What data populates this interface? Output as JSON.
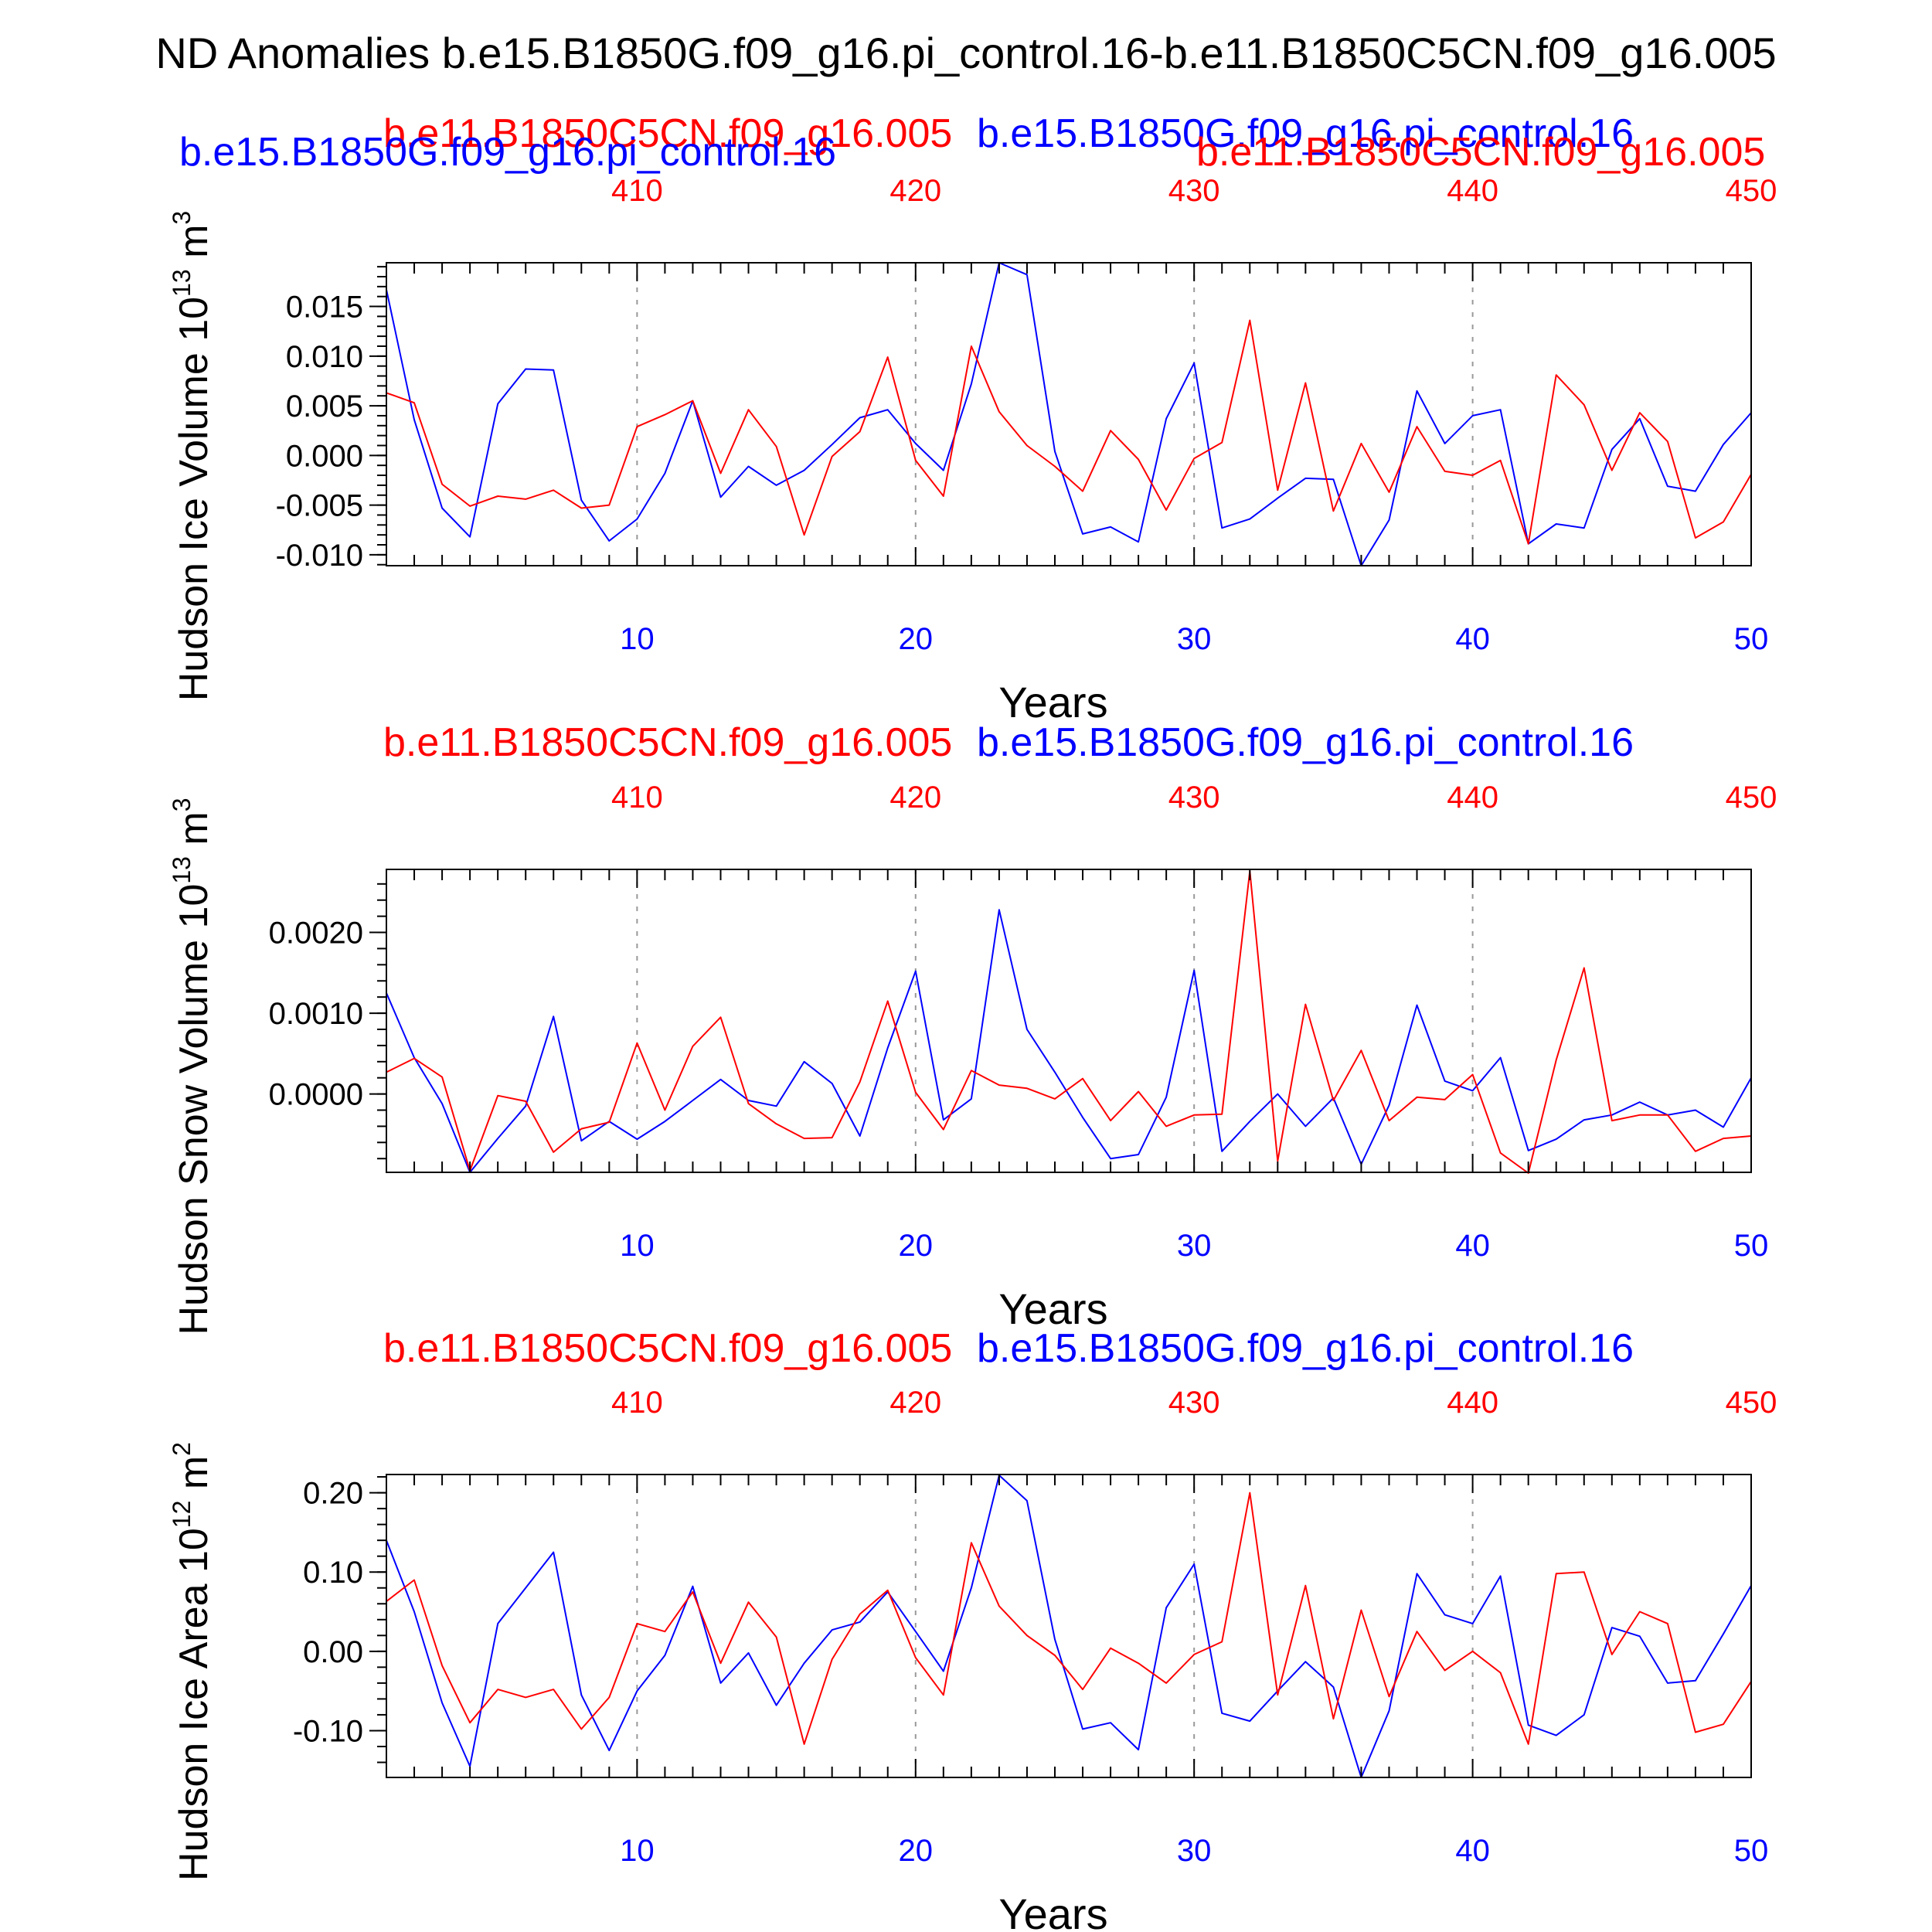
{
  "title": "ND Anomalies b.e15.B1850G.f09_g16.pi_control.16-b.e11.B1850C5CN.f09_g16.005",
  "colors": {
    "series_a": "#0000ff",
    "series_b": "#ff0000",
    "axis": "#000000",
    "grid": "#999999"
  },
  "legend": {
    "series_a_name": "b.e15.B1850G.f09_g16.pi_control.16",
    "series_b_name": "b.e11.B1850C5CN.f09_g16.005"
  },
  "chart_data": [
    {
      "type": "line",
      "ylabel": "Hudson Ice Volume 10",
      "ylabel_exp": "13",
      "ylabel_unit": " m",
      "ylabel_unit_exp": "3",
      "xlabel": "Years",
      "xlim": [
        1,
        50
      ],
      "ylim": [
        -0.0111,
        0.0194
      ],
      "yticks": [
        -0.01,
        -0.005,
        0.0,
        0.005,
        0.01,
        0.015
      ],
      "ytick_labels": [
        "-0.010",
        "-0.005",
        "0.000",
        "0.005",
        "0.010",
        "0.015"
      ],
      "bottom_ticks": [
        10,
        20,
        30,
        40,
        50
      ],
      "bottom_tick_labels": [
        "10",
        "20",
        "30",
        "40",
        "50"
      ],
      "top_ticks": [
        410,
        420,
        430,
        440,
        450
      ],
      "top_tick_labels": [
        "410",
        "420",
        "430",
        "440",
        "450"
      ],
      "top_offset": 400,
      "series": [
        {
          "name": "b.e15.B1850G.f09_g16.pi_control.16",
          "axis": "bottom",
          "x": [
            1,
            2,
            3,
            4,
            5,
            6,
            7,
            8,
            9,
            10,
            11,
            12,
            13,
            14,
            15,
            16,
            17,
            18,
            19,
            20,
            21,
            22,
            23,
            24,
            25,
            26,
            27,
            28,
            29,
            30,
            31,
            32,
            33,
            34,
            35,
            36,
            37,
            38,
            39,
            40,
            41,
            42,
            43,
            44,
            45,
            46,
            47,
            48,
            49,
            50
          ],
          "values": [
            0.0167,
            0.0036,
            -0.0053,
            -0.0082,
            0.0052,
            0.0087,
            0.0086,
            -0.0045,
            -0.0086,
            -0.0064,
            -0.0018,
            0.0055,
            -0.0042,
            -0.0011,
            -0.003,
            -0.0015,
            0.0011,
            0.0038,
            0.0046,
            0.0012,
            -0.0015,
            0.0072,
            0.0194,
            0.0182,
            0.0004,
            -0.0079,
            -0.0072,
            -0.0087,
            0.0037,
            0.0093,
            -0.0073,
            -0.0064,
            -0.0043,
            -0.0023,
            -0.0024,
            -0.0111,
            -0.0065,
            0.0065,
            0.0012,
            0.004,
            0.0046,
            -0.0089,
            -0.0069,
            -0.0073,
            0.0006,
            0.0037,
            -0.0031,
            -0.0036,
            0.0011,
            0.0043
          ]
        },
        {
          "name": "b.e11.B1850C5CN.f09_g16.005",
          "axis": "top",
          "x": [
            401,
            402,
            403,
            404,
            405,
            406,
            407,
            408,
            409,
            410,
            411,
            412,
            413,
            414,
            415,
            416,
            417,
            418,
            419,
            420,
            421,
            422,
            423,
            424,
            425,
            426,
            427,
            428,
            429,
            430,
            431,
            432,
            433,
            434,
            435,
            436,
            437,
            438,
            439,
            440,
            441,
            442,
            443,
            444,
            445,
            446,
            447,
            448,
            449,
            450
          ],
          "values": [
            0.0063,
            0.0053,
            -0.0029,
            -0.0051,
            -0.0041,
            -0.0044,
            -0.0035,
            -0.0053,
            -0.005,
            0.0029,
            0.0041,
            0.0055,
            -0.0018,
            0.0046,
            0.0009,
            -0.008,
            -0.0001,
            0.0024,
            0.0099,
            -0.0005,
            -0.0041,
            0.011,
            0.0044,
            0.001,
            -0.0011,
            -0.0036,
            0.0025,
            -0.0004,
            -0.0055,
            -0.0003,
            0.0013,
            0.0136,
            -0.0035,
            0.0073,
            -0.0056,
            0.0012,
            -0.0037,
            0.0029,
            -0.0016,
            -0.002,
            -0.0005,
            -0.0089,
            0.0081,
            0.0051,
            -0.0015,
            0.0043,
            0.0014,
            -0.0083,
            -0.0067,
            -0.0019
          ]
        }
      ]
    },
    {
      "type": "line",
      "ylabel": "Hudson Snow Volume 10",
      "ylabel_exp": "13",
      "ylabel_unit": " m",
      "ylabel_unit_exp": "3",
      "xlabel": "Years",
      "xlim": [
        1,
        50
      ],
      "ylim": [
        -0.00097,
        0.00278
      ],
      "yticks": [
        0.0,
        0.001,
        0.002
      ],
      "ytick_labels": [
        "0.0000",
        "0.0010",
        "0.0020"
      ],
      "bottom_ticks": [
        10,
        20,
        30,
        40,
        50
      ],
      "bottom_tick_labels": [
        "10",
        "20",
        "30",
        "40",
        "50"
      ],
      "top_ticks": [
        410,
        420,
        430,
        440,
        450
      ],
      "top_tick_labels": [
        "410",
        "420",
        "430",
        "440",
        "450"
      ],
      "top_offset": 400,
      "series": [
        {
          "name": "b.e15.B1850G.f09_g16.pi_control.16",
          "axis": "bottom",
          "x": [
            1,
            2,
            3,
            4,
            5,
            6,
            7,
            8,
            9,
            10,
            11,
            12,
            13,
            14,
            15,
            16,
            17,
            18,
            19,
            20,
            21,
            22,
            23,
            24,
            25,
            26,
            27,
            28,
            29,
            30,
            31,
            32,
            33,
            34,
            35,
            36,
            37,
            38,
            39,
            40,
            41,
            42,
            43,
            44,
            45,
            46,
            47,
            48,
            49,
            50
          ],
          "values": [
            0.00125,
            0.00045,
            -0.00012,
            -0.00097,
            -0.00055,
            -0.00015,
            0.00096,
            -0.00058,
            -0.00034,
            -0.00056,
            -0.00034,
            -8e-05,
            0.00018,
            -8e-05,
            -0.00015,
            0.0004,
            0.00013,
            -0.00052,
            0.00057,
            0.00152,
            -0.00032,
            -6e-05,
            0.00228,
            0.0008,
            0.00027,
            -0.00029,
            -0.0008,
            -0.00075,
            -4e-05,
            0.00153,
            -0.00071,
            -0.00034,
            0.0,
            -0.0004,
            -5e-05,
            -0.00087,
            -0.00014,
            0.0011,
            0.00016,
            4e-05,
            0.00045,
            -0.0007,
            -0.00056,
            -0.00032,
            -0.00026,
            -0.0001,
            -0.00026,
            -0.0002,
            -0.00041,
            0.0002
          ]
        },
        {
          "name": "b.e11.B1850C5CN.f09_g16.005",
          "axis": "top",
          "x": [
            401,
            402,
            403,
            404,
            405,
            406,
            407,
            408,
            409,
            410,
            411,
            412,
            413,
            414,
            415,
            416,
            417,
            418,
            419,
            420,
            421,
            422,
            423,
            424,
            425,
            426,
            427,
            428,
            429,
            430,
            431,
            432,
            433,
            434,
            435,
            436,
            437,
            438,
            439,
            440,
            441,
            442,
            443,
            444,
            445,
            446,
            447,
            448,
            449,
            450
          ],
          "values": [
            0.00027,
            0.00044,
            0.00021,
            -0.00095,
            -2e-05,
            -9e-05,
            -0.00072,
            -0.00043,
            -0.00035,
            0.00063,
            -0.0002,
            0.00059,
            0.00095,
            -0.00012,
            -0.00037,
            -0.00055,
            -0.00054,
            0.00015,
            0.00115,
            2e-05,
            -0.00044,
            0.00029,
            0.00011,
            7e-05,
            -6e-05,
            0.00019,
            -0.00033,
            3e-05,
            -0.0004,
            -0.00026,
            -0.00025,
            0.00276,
            -0.00083,
            0.00111,
            -8e-05,
            0.00054,
            -0.00033,
            -4e-05,
            -7e-05,
            0.00024,
            -0.00073,
            -0.00098,
            0.00042,
            0.00156,
            -0.00033,
            -0.00026,
            -0.00026,
            -0.00071,
            -0.00055,
            -0.00052
          ]
        }
      ]
    },
    {
      "type": "line",
      "ylabel": "Hudson Ice Area 10",
      "ylabel_exp": "12",
      "ylabel_unit": " m",
      "ylabel_unit_exp": "2",
      "xlabel": "Years",
      "xlim": [
        1,
        50
      ],
      "ylim": [
        -0.159,
        0.223
      ],
      "yticks": [
        -0.1,
        0.0,
        0.1,
        0.2
      ],
      "ytick_labels": [
        "-0.10",
        "0.00",
        "0.10",
        "0.20"
      ],
      "bottom_ticks": [
        10,
        20,
        30,
        40,
        50
      ],
      "bottom_tick_labels": [
        "10",
        "20",
        "30",
        "40",
        "50"
      ],
      "top_ticks": [
        410,
        420,
        430,
        440,
        450
      ],
      "top_tick_labels": [
        "410",
        "420",
        "430",
        "440",
        "450"
      ],
      "top_offset": 400,
      "series": [
        {
          "name": "b.e15.B1850G.f09_g16.pi_control.16",
          "axis": "bottom",
          "x": [
            1,
            2,
            3,
            4,
            5,
            6,
            7,
            8,
            9,
            10,
            11,
            12,
            13,
            14,
            15,
            16,
            17,
            18,
            19,
            20,
            21,
            22,
            23,
            24,
            25,
            26,
            27,
            28,
            29,
            30,
            31,
            32,
            33,
            34,
            35,
            36,
            37,
            38,
            39,
            40,
            41,
            42,
            43,
            44,
            45,
            46,
            47,
            48,
            49,
            50
          ],
          "values": [
            0.14,
            0.05,
            -0.065,
            -0.145,
            0.035,
            0.08,
            0.125,
            -0.055,
            -0.125,
            -0.05,
            -0.005,
            0.082,
            -0.04,
            -0.002,
            -0.068,
            -0.015,
            0.027,
            0.037,
            0.075,
            0.025,
            -0.025,
            0.08,
            0.222,
            0.19,
            0.015,
            -0.098,
            -0.09,
            -0.124,
            0.055,
            0.11,
            -0.078,
            -0.088,
            -0.05,
            -0.013,
            -0.045,
            -0.159,
            -0.075,
            0.098,
            0.046,
            0.035,
            0.095,
            -0.093,
            -0.106,
            -0.08,
            0.03,
            0.019,
            -0.04,
            -0.037,
            0.022,
            0.083
          ]
        },
        {
          "name": "b.e11.B1850C5CN.f09_g16.005",
          "axis": "top",
          "x": [
            401,
            402,
            403,
            404,
            405,
            406,
            407,
            408,
            409,
            410,
            411,
            412,
            413,
            414,
            415,
            416,
            417,
            418,
            419,
            420,
            421,
            422,
            423,
            424,
            425,
            426,
            427,
            428,
            429,
            430,
            431,
            432,
            433,
            434,
            435,
            436,
            437,
            438,
            439,
            440,
            441,
            442,
            443,
            444,
            445,
            446,
            447,
            448,
            449,
            450
          ],
          "values": [
            0.063,
            0.09,
            -0.018,
            -0.09,
            -0.048,
            -0.058,
            -0.048,
            -0.098,
            -0.058,
            0.035,
            0.025,
            0.075,
            -0.015,
            0.062,
            0.018,
            -0.117,
            -0.01,
            0.047,
            0.077,
            -0.008,
            -0.055,
            0.137,
            0.057,
            0.02,
            -0.005,
            -0.048,
            0.004,
            -0.015,
            -0.04,
            -0.004,
            0.012,
            0.2,
            -0.055,
            0.083,
            -0.085,
            0.052,
            -0.057,
            0.025,
            -0.024,
            0.0,
            -0.027,
            -0.117,
            0.098,
            0.1,
            -0.004,
            0.05,
            0.035,
            -0.102,
            -0.092,
            -0.038
          ]
        }
      ]
    }
  ]
}
